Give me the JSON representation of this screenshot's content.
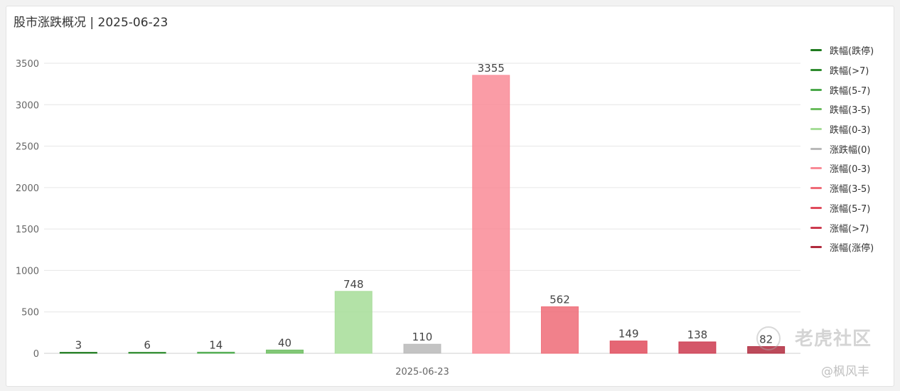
{
  "title": "股市涨跌概况 | 2025-06-23",
  "watermark": {
    "main": "老虎社区",
    "sub": "@枫风丰"
  },
  "chart_data": {
    "type": "bar",
    "title": "股市涨跌概况 | 2025-06-23",
    "xlabel": "",
    "ylabel": "",
    "ylim": [
      0,
      3500
    ],
    "yticks": [
      0,
      500,
      1000,
      1500,
      2000,
      2500,
      3000,
      3500
    ],
    "x_category": "2025-06-23",
    "grid": true,
    "legend_position": "right",
    "series": [
      {
        "name": "跌幅(跌停)",
        "value": 3,
        "color": "#1e7a1e"
      },
      {
        "name": "跌幅(>7)",
        "value": 6,
        "color": "#2e8b2e"
      },
      {
        "name": "跌幅(5-7)",
        "value": 14,
        "color": "#4aa84a"
      },
      {
        "name": "跌幅(3-5)",
        "value": 40,
        "color": "#6cbd5f"
      },
      {
        "name": "跌幅(0-3)",
        "value": 748,
        "color": "#a6dd98"
      },
      {
        "name": "涨跌幅(0)",
        "value": 110,
        "color": "#b9b9b9"
      },
      {
        "name": "涨幅(0-3)",
        "value": 3355,
        "color": "#f98b97"
      },
      {
        "name": "涨幅(3-5)",
        "value": 562,
        "color": "#ef6b77"
      },
      {
        "name": "涨幅(5-7)",
        "value": 149,
        "color": "#e04b5c"
      },
      {
        "name": "涨幅(>7)",
        "value": 138,
        "color": "#cc3a4f"
      },
      {
        "name": "涨幅(涨停)",
        "value": 82,
        "color": "#b02a3d"
      }
    ]
  }
}
